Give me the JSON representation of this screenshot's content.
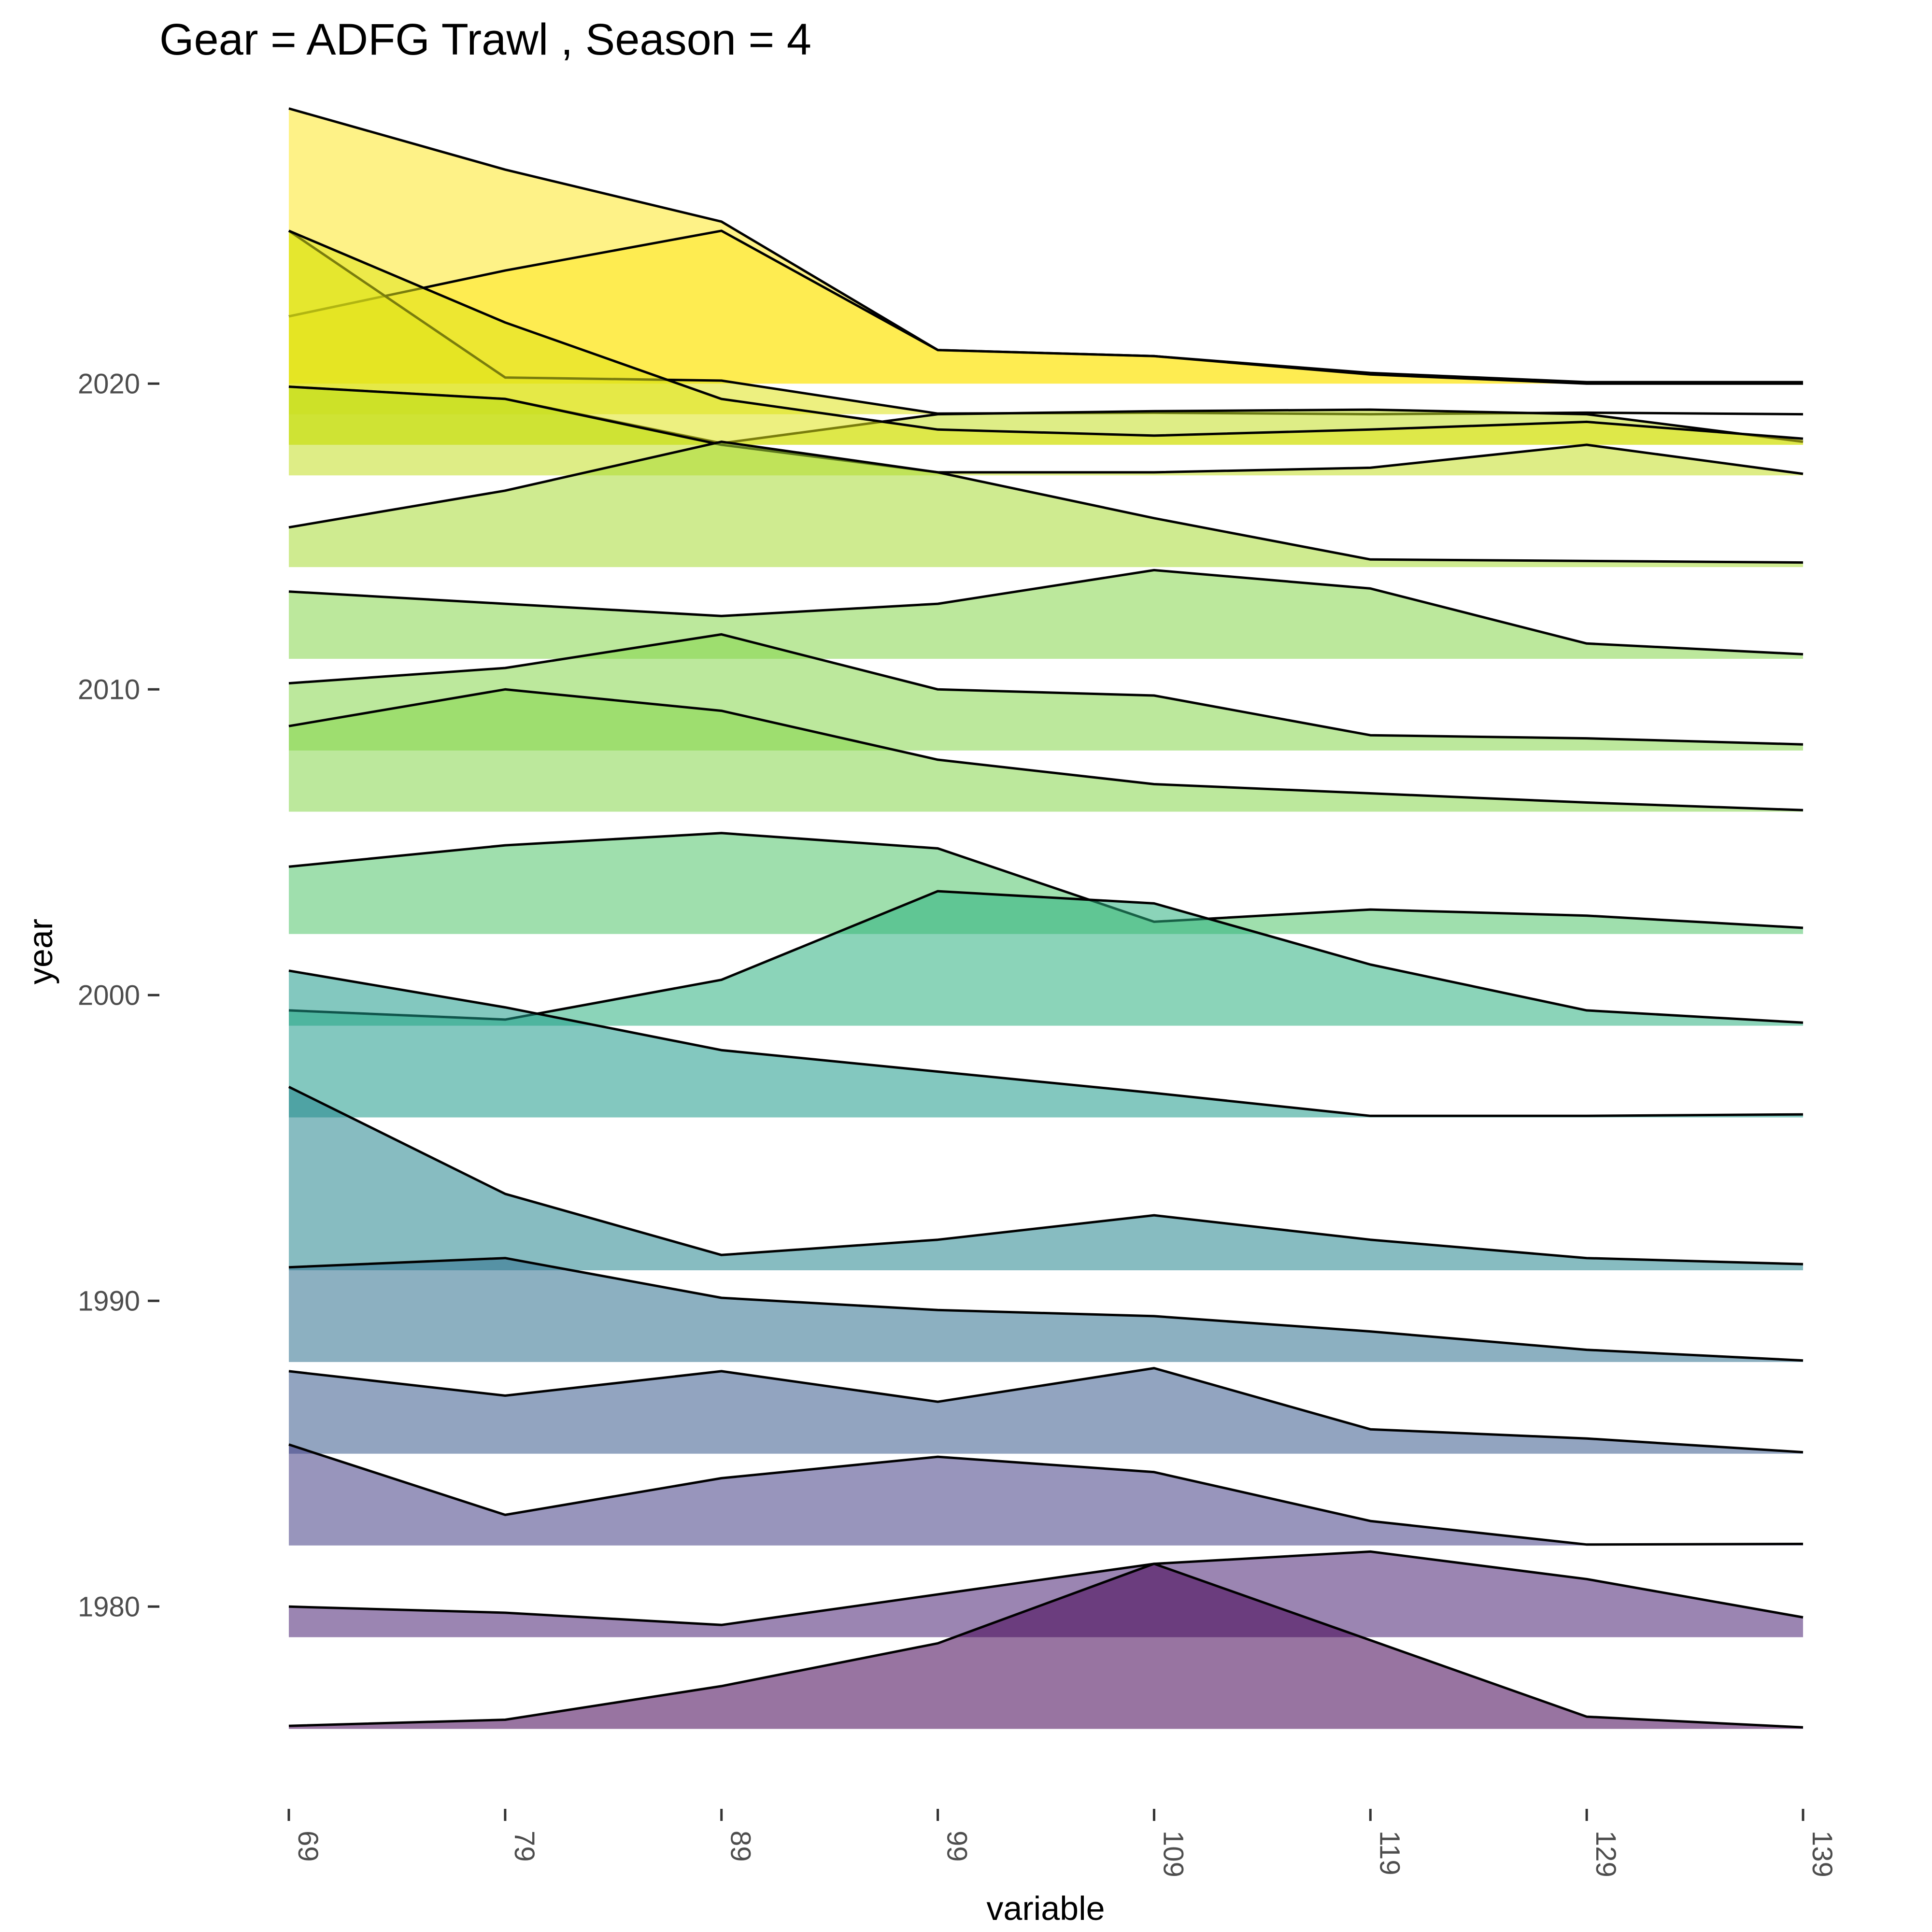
{
  "chart_data": {
    "type": "area",
    "title": "Gear = ADFG Trawl , Season = 4",
    "xlabel": "variable",
    "ylabel": "year",
    "x": [
      69,
      79,
      89,
      99,
      109,
      119,
      129,
      139
    ],
    "x_ticks": [
      "69",
      "79",
      "89",
      "99",
      "109",
      "119",
      "129",
      "139"
    ],
    "y_ticks": [
      1980,
      1990,
      2000,
      2010,
      2020
    ],
    "y_tick_labels": [
      "1980",
      "1990",
      "2000",
      "2010",
      "2020"
    ],
    "ylim": [
      1972.8,
      2030.8
    ],
    "ridge_scale": 1.0,
    "grid": false,
    "legend": "none",
    "colormap": "viridis",
    "series": [
      {
        "year": 1976,
        "color": "#440154",
        "values": [
          0.1,
          0.3,
          1.4,
          2.8,
          5.4,
          2.9,
          0.4,
          0.05
        ]
      },
      {
        "year": 1979,
        "color": "#482173",
        "values": [
          1.0,
          0.8,
          0.4,
          1.4,
          2.4,
          2.8,
          1.9,
          0.65
        ]
      },
      {
        "year": 1982,
        "color": "#433E85",
        "values": [
          3.3,
          1.0,
          2.2,
          2.9,
          2.4,
          0.8,
          0.03,
          0.05
        ]
      },
      {
        "year": 1985,
        "color": "#38598C",
        "values": [
          2.7,
          1.9,
          2.7,
          1.7,
          2.8,
          0.8,
          0.5,
          0.05
        ]
      },
      {
        "year": 1988,
        "color": "#2D708E",
        "values": [
          3.1,
          3.4,
          2.1,
          1.7,
          1.5,
          1.0,
          0.4,
          0.05
        ]
      },
      {
        "year": 1991,
        "color": "#25858E",
        "values": [
          6.0,
          2.5,
          0.5,
          1.0,
          1.8,
          1.0,
          0.4,
          0.2
        ]
      },
      {
        "year": 1996,
        "color": "#1E9B8A",
        "values": [
          4.8,
          3.6,
          2.2,
          1.5,
          0.8,
          0.05,
          0.05,
          0.1
        ]
      },
      {
        "year": 1999,
        "color": "#2BB07F",
        "values": [
          0.5,
          0.2,
          1.5,
          4.4,
          4.0,
          2.0,
          0.5,
          0.1
        ]
      },
      {
        "year": 2002,
        "color": "#51C56A",
        "values": [
          2.2,
          2.9,
          3.3,
          2.8,
          0.4,
          0.8,
          0.6,
          0.2
        ]
      },
      {
        "year": 2006,
        "color": "#85D54A",
        "values": [
          2.8,
          4.0,
          3.3,
          1.7,
          0.9,
          0.6,
          0.3,
          0.05
        ]
      },
      {
        "year": 2008,
        "color": "#85D54A",
        "values": [
          2.2,
          2.7,
          3.8,
          2.0,
          1.8,
          0.5,
          0.4,
          0.2
        ]
      },
      {
        "year": 2011,
        "color": "#85D54A",
        "values": [
          2.2,
          1.8,
          1.4,
          1.8,
          2.9,
          2.3,
          0.5,
          0.15
        ]
      },
      {
        "year": 2014,
        "color": "#A8DB34",
        "values": [
          1.3,
          2.5,
          4.1,
          3.1,
          1.6,
          0.25,
          0.2,
          0.15
        ]
      },
      {
        "year": 2017,
        "color": "#C2DF23",
        "values": [
          2.9,
          2.5,
          1.0,
          0.1,
          0.1,
          0.25,
          1.0,
          0.05
        ]
      },
      {
        "year": 2018,
        "color": "#C2DF23",
        "values": [
          1.9,
          1.5,
          0.05,
          1.0,
          1.1,
          1.15,
          1.0,
          0.1
        ]
      },
      {
        "year": 2018,
        "color": "#DFE318",
        "values": [
          7.0,
          4.0,
          1.5,
          0.5,
          0.3,
          0.5,
          0.75,
          0.2
        ]
      },
      {
        "year": 2019,
        "color": "#DFE318",
        "values": [
          6.0,
          1.2,
          1.1,
          0.02,
          0.05,
          0.0,
          0.05,
          0.0
        ]
      },
      {
        "year": 2020,
        "color": "#FDE725",
        "values": [
          9.0,
          7.0,
          5.3,
          1.1,
          0.9,
          0.35,
          0.05,
          0.05
        ]
      },
      {
        "year": 2020,
        "color": "#FDE725",
        "values": [
          2.2,
          3.7,
          5.0,
          1.1,
          0.9,
          0.3,
          0.0,
          0.0
        ]
      }
    ]
  }
}
